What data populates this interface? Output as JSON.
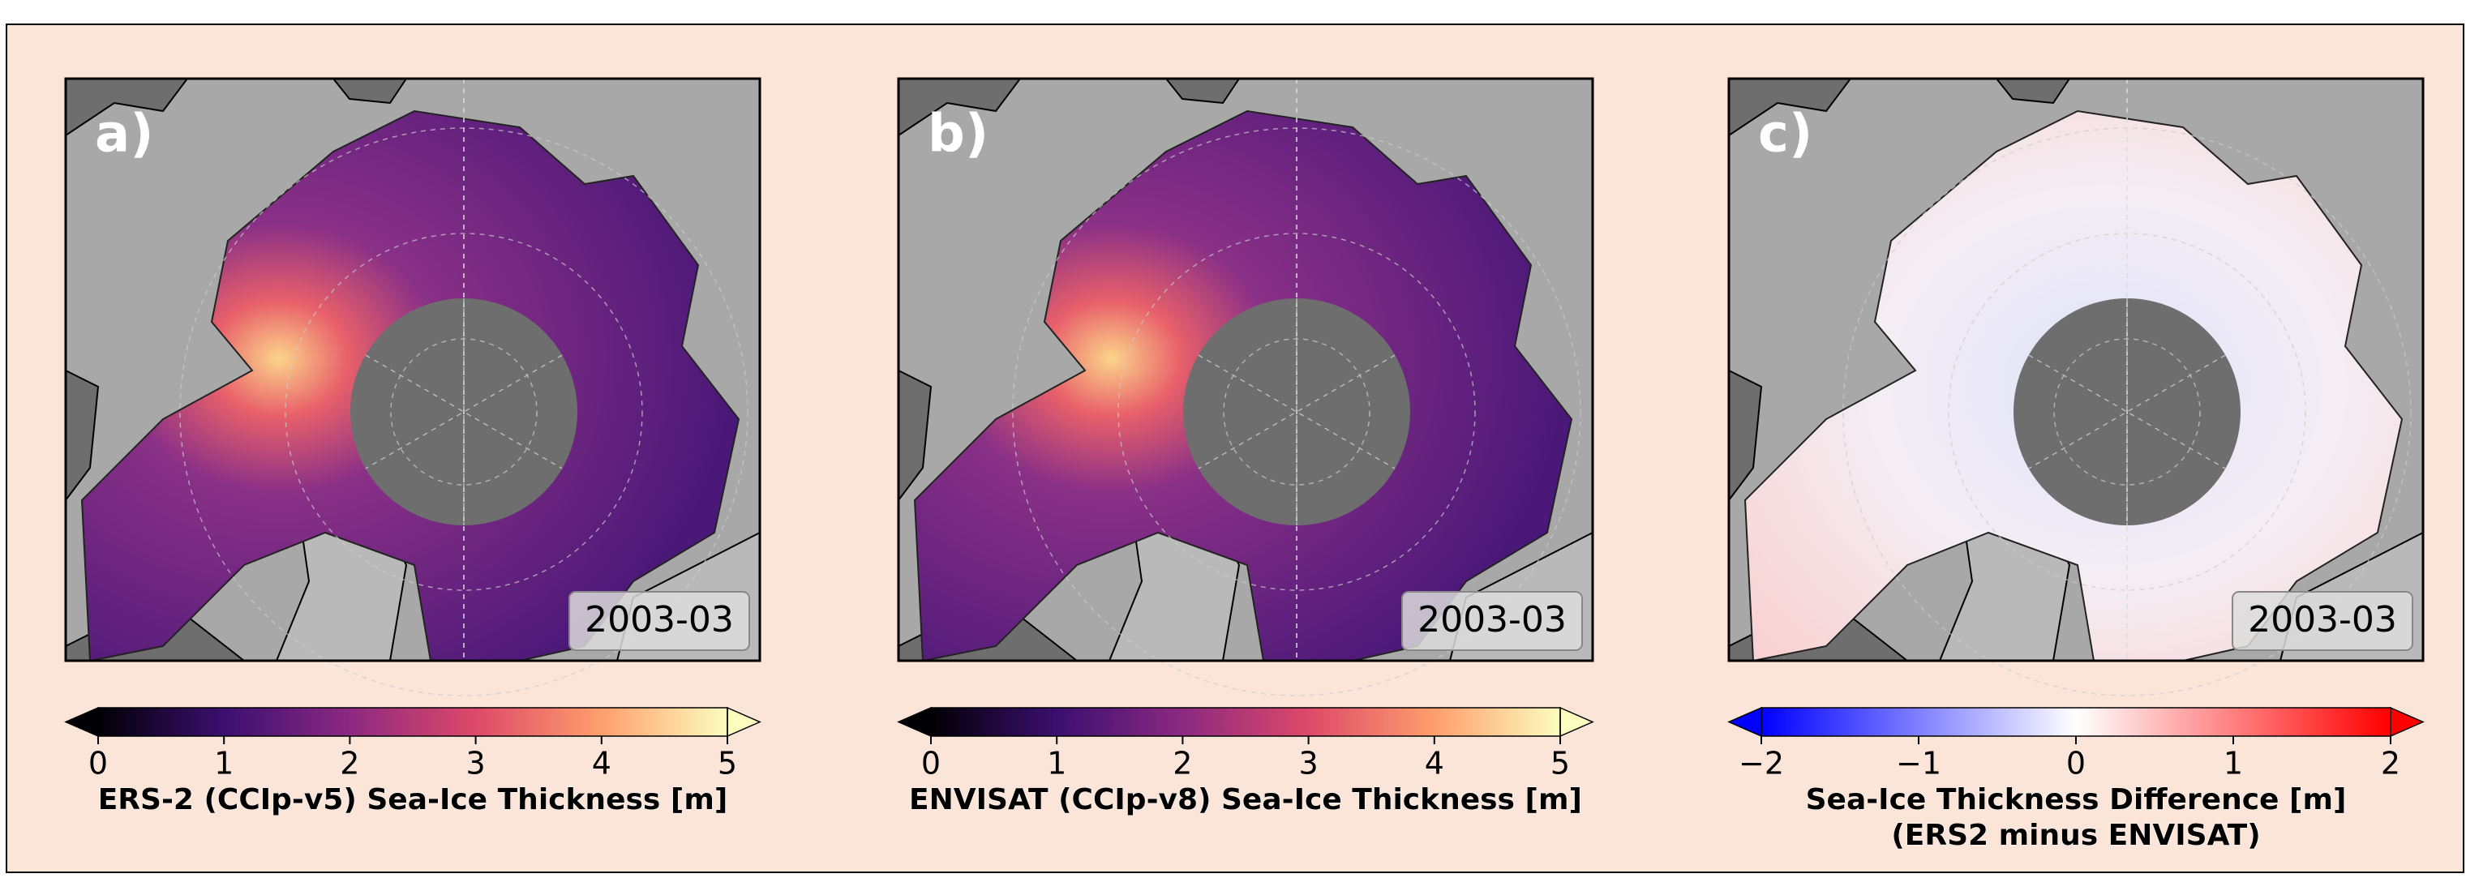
{
  "panels": [
    {
      "label": "a)",
      "date": "2003-03",
      "colorbar": {
        "label": [
          "ERS-2 (CCIp-v5) Sea-Ice Thickness [m]"
        ],
        "cmap": "magma",
        "lim": [
          0,
          5
        ],
        "ticks": [
          0,
          1,
          2,
          3,
          4,
          5
        ]
      }
    },
    {
      "label": "b)",
      "date": "2003-03",
      "colorbar": {
        "label": [
          "ENVISAT (CCIp-v8) Sea-Ice Thickness [m]"
        ],
        "cmap": "magma",
        "lim": [
          0,
          5
        ],
        "ticks": [
          0,
          1,
          2,
          3,
          4,
          5
        ]
      }
    },
    {
      "label": "c)",
      "date": "2003-03",
      "colorbar": {
        "label": [
          "Sea-Ice Thickness Difference [m]",
          "(ERS2 minus ENVISAT)"
        ],
        "cmap": "bwr",
        "lim": [
          -2,
          2
        ],
        "ticks": [
          {
            "value": -2,
            "label": "−2"
          },
          {
            "value": -1,
            "label": "−1"
          },
          0,
          1,
          2
        ]
      }
    }
  ]
}
